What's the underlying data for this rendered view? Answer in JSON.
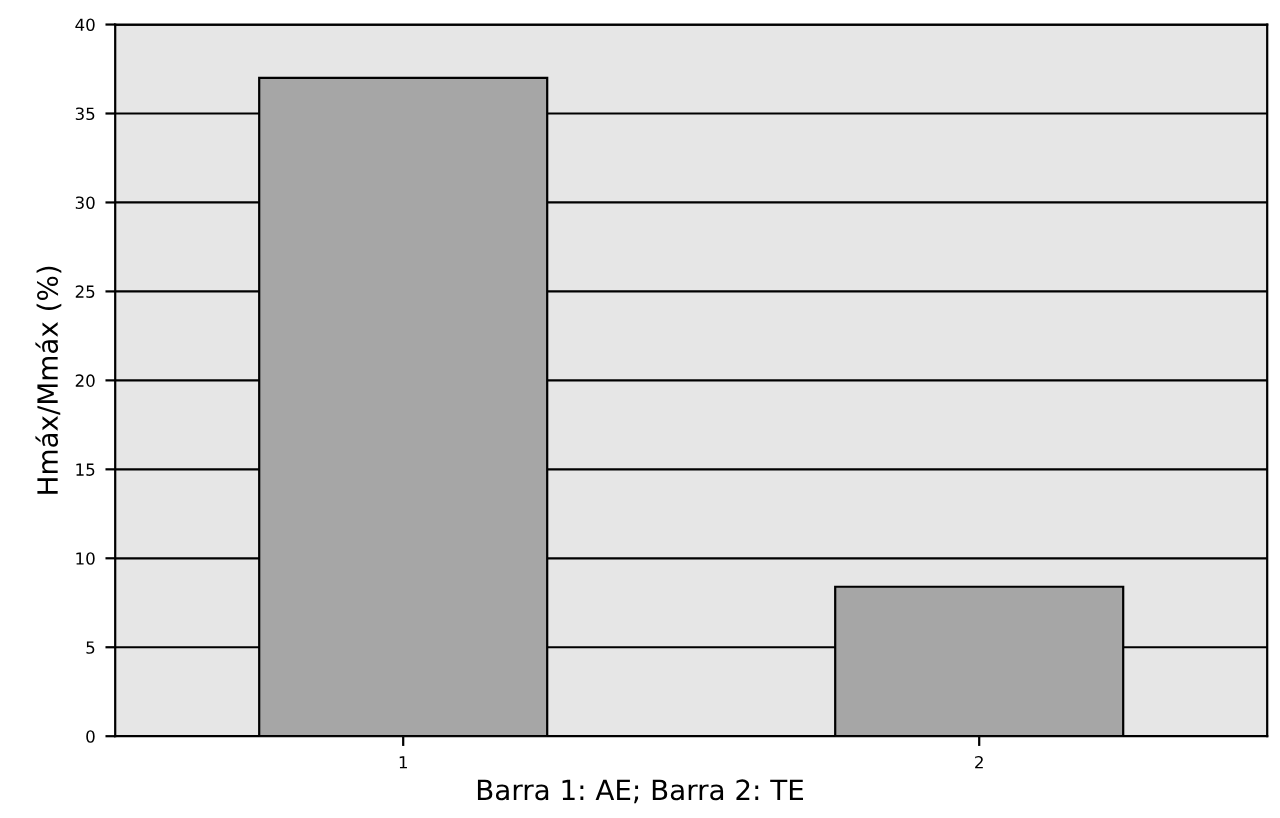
{
  "chart_data": {
    "type": "bar",
    "xlabel": "Barra 1: AE; Barra 2: TE",
    "ylabel": "Hmáx/Mmáx (%)",
    "categories": [
      "1",
      "2"
    ],
    "values": [
      37,
      8.4
    ],
    "color": "#a6a6a6",
    "ylim": [
      0,
      40
    ],
    "yticks": [
      0,
      5,
      10,
      15,
      20,
      25,
      30,
      35,
      40
    ],
    "grid": "y"
  }
}
